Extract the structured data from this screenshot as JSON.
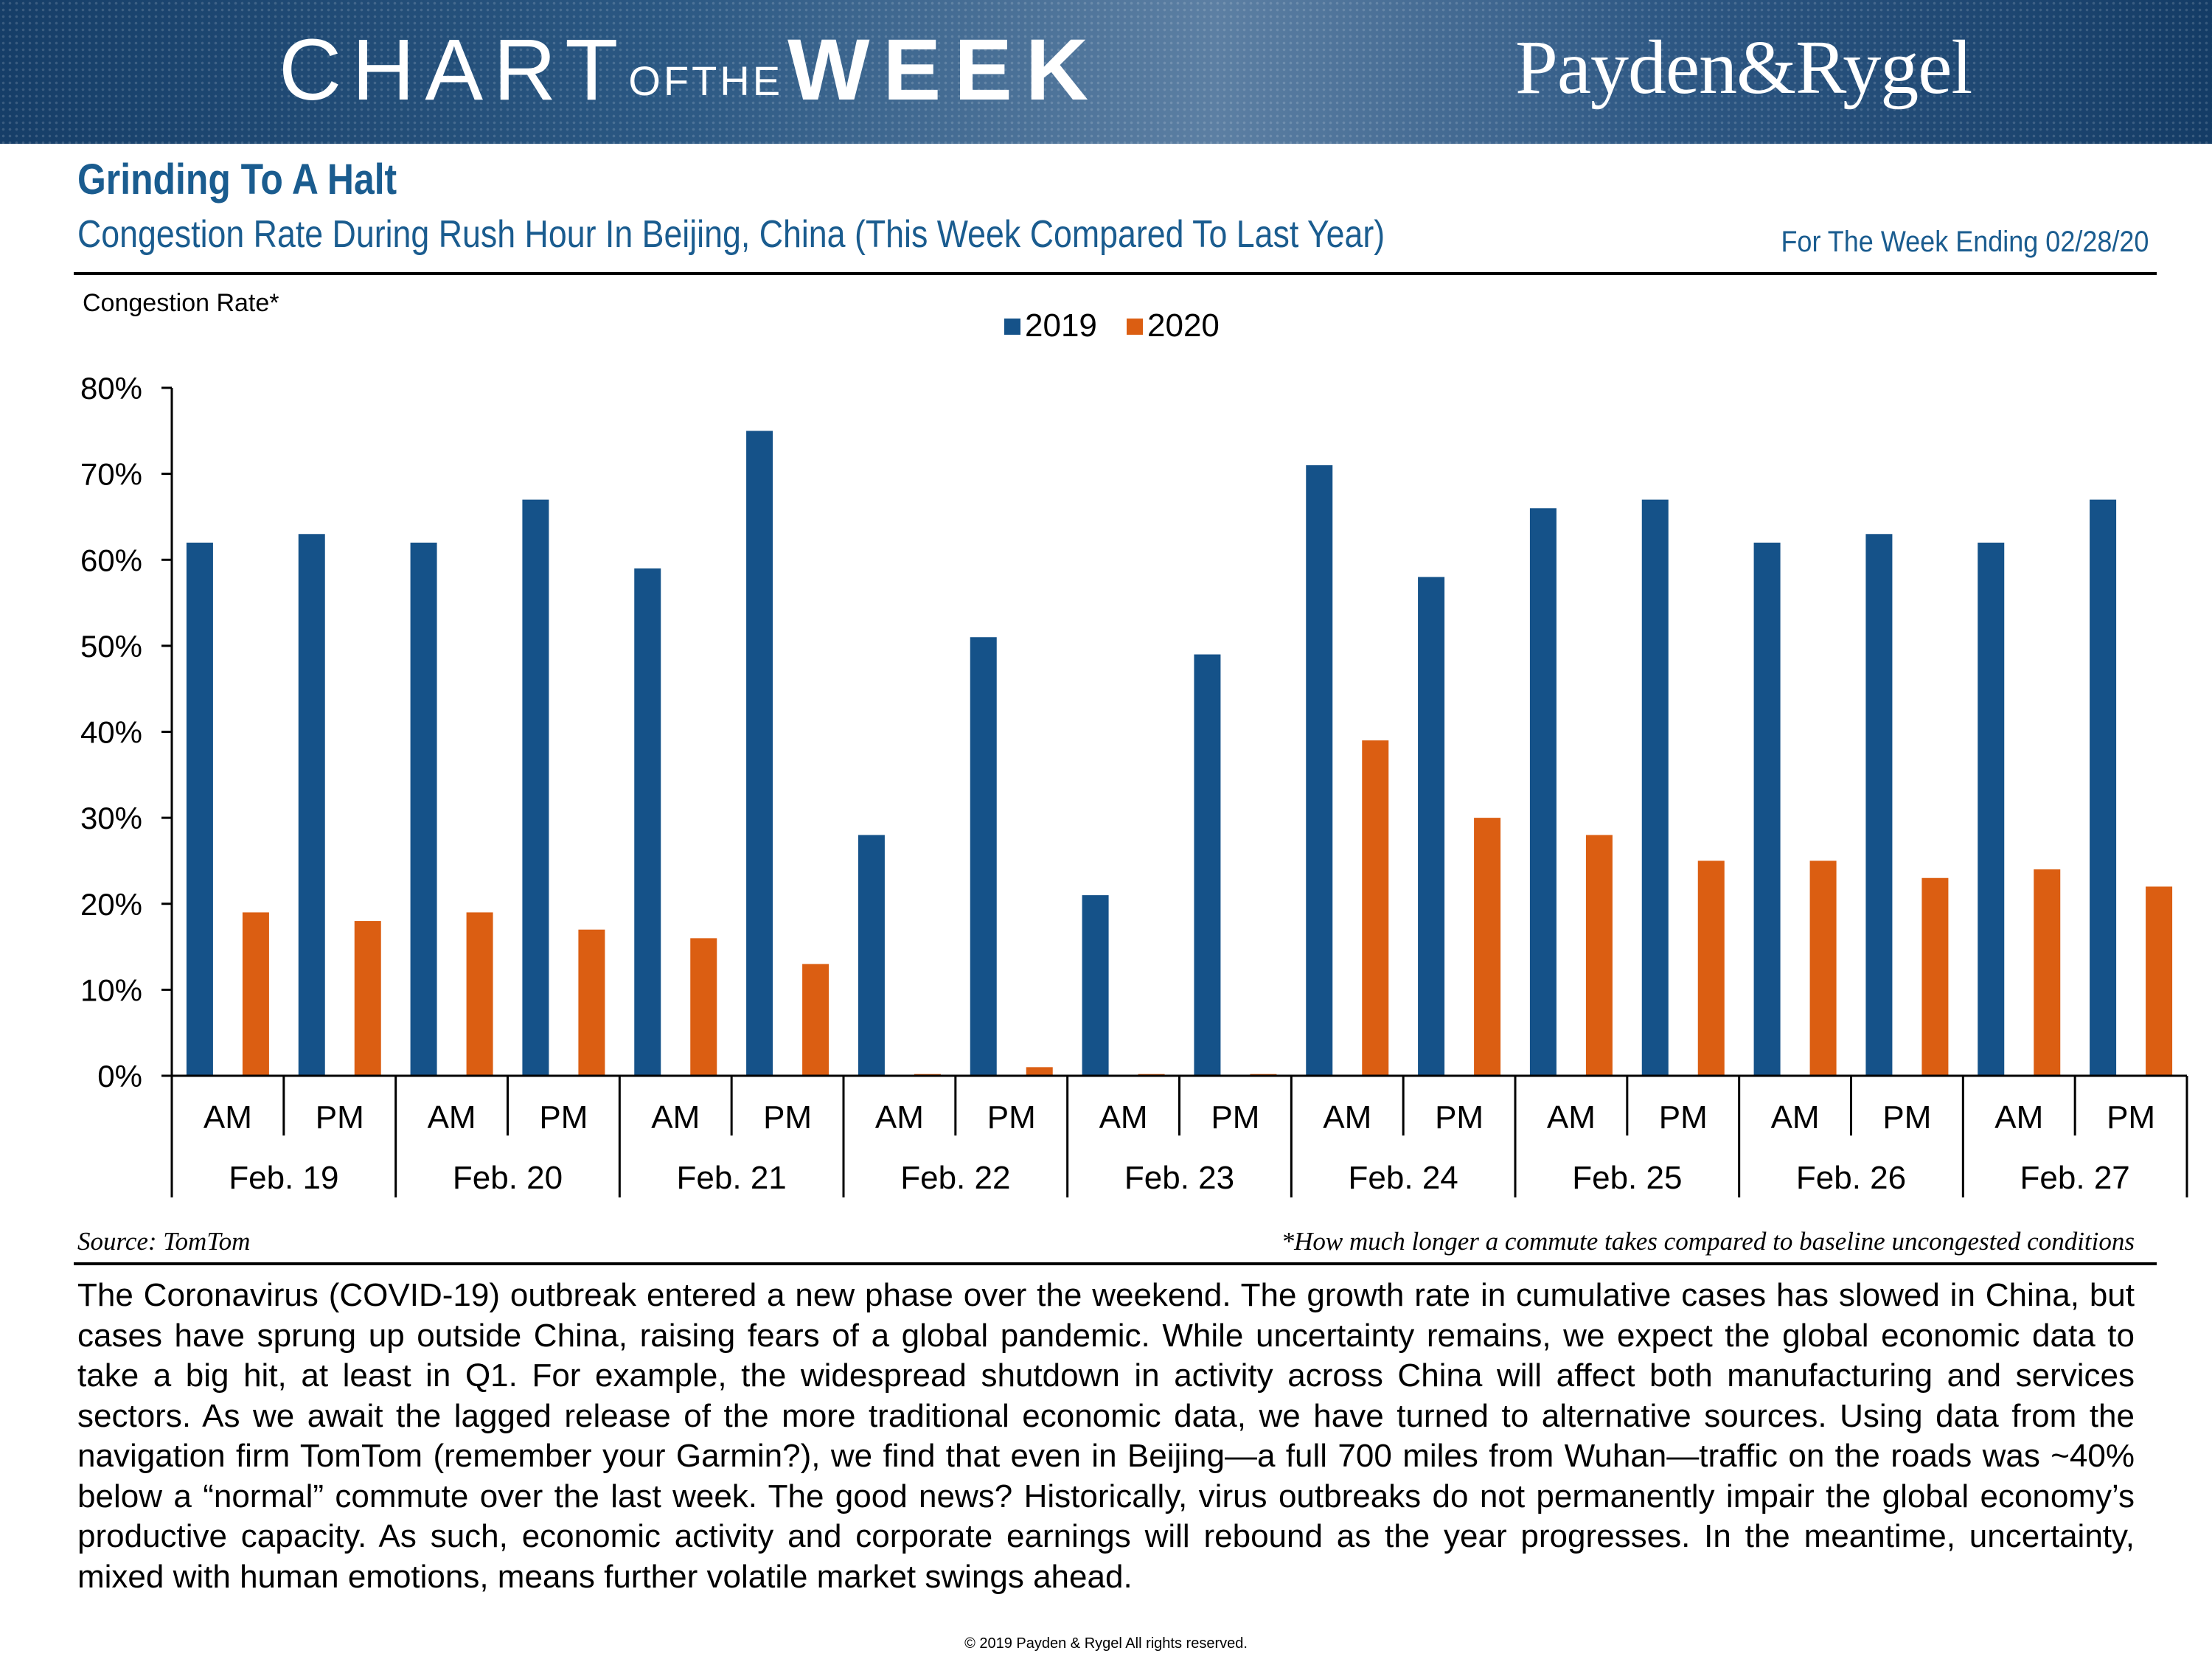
{
  "banner": {
    "title_chart": "CHART",
    "title_ofthe": "OFTHE",
    "title_week": "WEEK",
    "brand": "Payden&Rygel"
  },
  "header": {
    "title": "Grinding To A Halt",
    "subtitle": "Congestion Rate During Rush Hour In Beijing, China (This Week Compared To Last Year)",
    "dateline": "For The Week Ending 02/28/20"
  },
  "chart_data": {
    "type": "bar",
    "ylabel": "Congestion Rate*",
    "ylim": [
      0,
      80
    ],
    "yticks": [
      0,
      10,
      20,
      30,
      40,
      50,
      60,
      70,
      80
    ],
    "ytick_labels": [
      "0%",
      "10%",
      "20%",
      "30%",
      "40%",
      "50%",
      "60%",
      "70%",
      "80%"
    ],
    "legend_position": "top-center",
    "grid": false,
    "colors": {
      "2019": "#155289",
      "2020": "#db5e12"
    },
    "categories": [
      "Feb. 19 AM",
      "Feb. 19 PM",
      "Feb. 20 AM",
      "Feb. 20 PM",
      "Feb. 21 AM",
      "Feb. 21 PM",
      "Feb. 22 AM",
      "Feb. 22 PM",
      "Feb. 23 AM",
      "Feb. 23 PM",
      "Feb. 24 AM",
      "Feb. 24 PM",
      "Feb. 25 AM",
      "Feb. 25 PM",
      "Feb. 26 AM",
      "Feb. 26 PM",
      "Feb. 27 AM",
      "Feb. 27 PM"
    ],
    "groups": [
      "Feb. 19",
      "Feb. 20",
      "Feb. 21",
      "Feb. 22",
      "Feb. 23",
      "Feb. 24",
      "Feb. 25",
      "Feb. 26",
      "Feb. 27"
    ],
    "sub_labels": [
      "AM",
      "PM"
    ],
    "series": [
      {
        "name": "2019",
        "values": [
          62,
          63,
          62,
          67,
          59,
          75,
          28,
          51,
          21,
          49,
          71,
          58,
          66,
          67,
          62,
          63,
          62,
          67
        ]
      },
      {
        "name": "2020",
        "values": [
          19,
          18,
          19,
          17,
          16,
          13,
          0.2,
          1,
          0.2,
          0.2,
          39,
          30,
          28,
          25,
          25,
          23,
          24,
          22
        ]
      }
    ]
  },
  "notes": {
    "source": "Source: TomTom",
    "footnote": "*How much longer a commute takes compared to baseline uncongested conditions"
  },
  "commentary": "The Coronavirus (COVID-19) outbreak entered a new phase over the weekend. The growth rate in cumulative cases has slowed in China, but cases have sprung up outside China, raising fears of a global pandemic. While uncertainty remains, we expect the global economic data to take a big hit, at least in Q1. For example, the widespread shutdown in activity across China will affect both manufacturing and services sectors. As we await the lagged release of the more traditional economic data, we have turned to alternative sources. Using data from the navigation firm TomTom (remember your Garmin?), we find that even in Beijing—a full 700 miles from Wuhan—traffic on the roads was ~40% below a “normal” commute over the last week. The good news? Historically, virus outbreaks do not permanently impair the global economy’s productive capacity. As such, economic activity and corporate earnings will rebound as the year progresses. In the meantime, uncertainty, mixed with human emotions, means further volatile market swings ahead.",
  "copyright": "© 2019 Payden & Rygel All rights reserved."
}
